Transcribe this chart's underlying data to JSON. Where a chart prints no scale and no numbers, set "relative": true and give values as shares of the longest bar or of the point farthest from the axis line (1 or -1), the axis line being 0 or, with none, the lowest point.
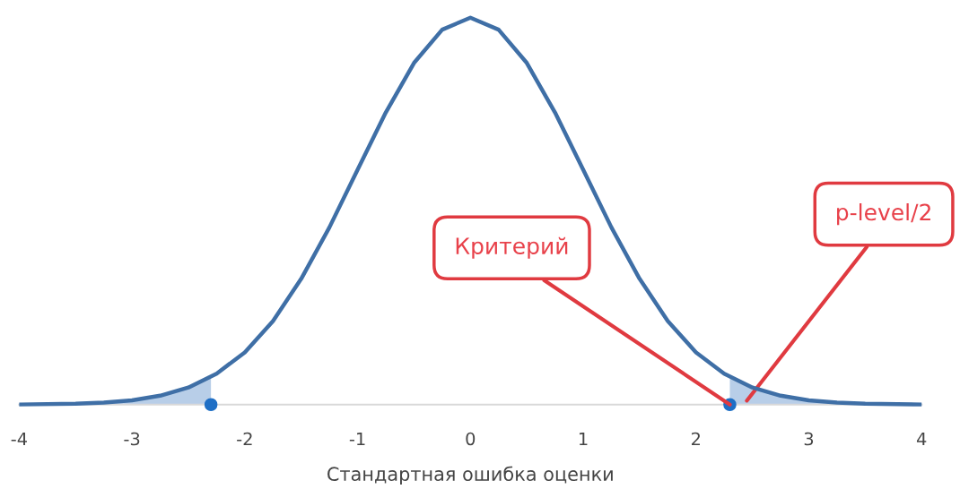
{
  "chart_data": {
    "type": "line",
    "relative": true,
    "xlabel": "Стандартная ошибка оценки",
    "xlim": [
      -4,
      4
    ],
    "xticks": [
      -4,
      -3,
      -2,
      -1,
      0,
      1,
      2,
      3,
      4
    ],
    "grid": false,
    "legend": false,
    "marker": "none",
    "line_style": "solid",
    "series": [
      {
        "type": "area",
        "color": "#b8cee8",
        "x": [
          -4,
          -3.5,
          -3,
          -2.75,
          -2.5,
          -2.3
        ],
        "values": [
          0.0003,
          0.0022,
          0.011,
          0.023,
          0.044,
          0.071
        ]
      },
      {
        "type": "area",
        "color": "#b8cee8",
        "x": [
          2.3,
          2.5,
          2.75,
          3,
          3.5,
          4
        ],
        "values": [
          0.071,
          0.044,
          0.023,
          0.011,
          0.0022,
          0.0003
        ]
      },
      {
        "color": "#3f6fa6",
        "x": [
          -4,
          -3.5,
          -3.25,
          -3,
          -2.75,
          -2.5,
          -2.25,
          -2,
          -1.75,
          -1.5,
          -1.25,
          -1,
          -0.75,
          -0.5,
          -0.25,
          0,
          0.25,
          0.5,
          0.75,
          1,
          1.25,
          1.5,
          1.75,
          2,
          2.25,
          2.5,
          2.75,
          3,
          3.25,
          3.5,
          4
        ],
        "values": [
          0.0003,
          0.0022,
          0.005,
          0.011,
          0.023,
          0.044,
          0.08,
          0.135,
          0.216,
          0.325,
          0.458,
          0.607,
          0.755,
          0.883,
          0.969,
          1,
          0.969,
          0.883,
          0.755,
          0.607,
          0.458,
          0.325,
          0.216,
          0.135,
          0.08,
          0.044,
          0.023,
          0.011,
          0.005,
          0.0022,
          0.0003
        ]
      },
      {
        "type": "scatter",
        "color": "#1f6fc5",
        "marker": "circle",
        "x": [
          -2.3,
          2.3
        ],
        "values": [
          0,
          0
        ]
      }
    ],
    "annotations": [
      {
        "text": "Критерий",
        "x": 2.3,
        "y": 0
      },
      {
        "text": "p-level/2",
        "x": 2.45,
        "y": 0.01
      }
    ]
  }
}
